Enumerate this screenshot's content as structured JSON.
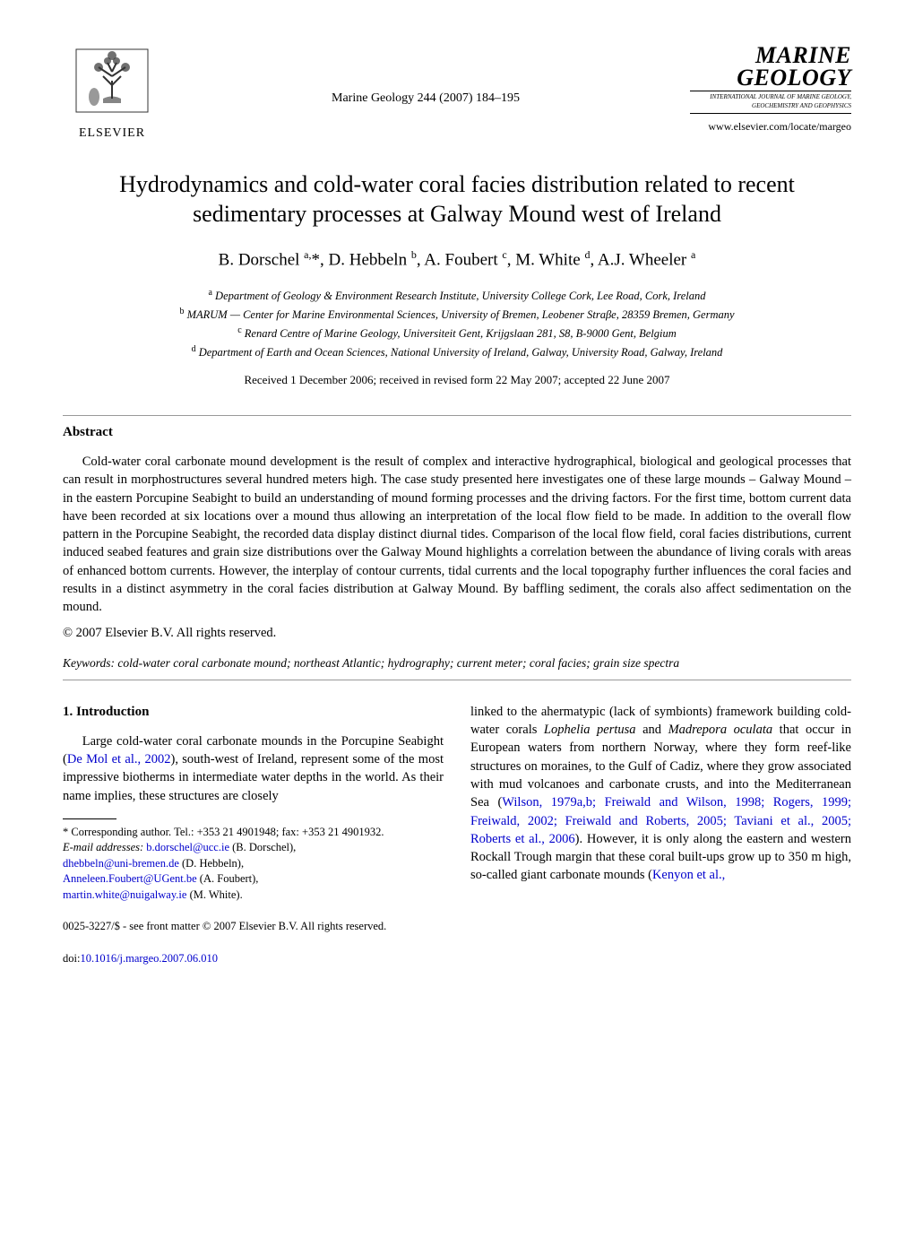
{
  "header": {
    "elsevier_label": "ELSEVIER",
    "citation": "Marine Geology 244 (2007) 184–195",
    "journal_name_line1": "MARINE",
    "journal_name_line2": "GEOLOGY",
    "journal_subtitle": "INTERNATIONAL JOURNAL OF MARINE GEOLOGY, GEOCHEMISTRY AND GEOPHYSICS",
    "journal_url": "www.elsevier.com/locate/margeo"
  },
  "article": {
    "title": "Hydrodynamics and cold-water coral facies distribution related to recent sedimentary processes at Galway Mound west of Ireland",
    "authors_html": "B. Dorschel <sup>a,</sup>*, D. Hebbeln <sup>b</sup>, A. Foubert <sup>c</sup>, M. White <sup>d</sup>, A.J. Wheeler <sup>a</sup>",
    "affiliations": [
      {
        "sup": "a",
        "text": "Department of Geology & Environment Research Institute, University College Cork, Lee Road, Cork, Ireland"
      },
      {
        "sup": "b",
        "text": "MARUM — Center for Marine Environmental Sciences, University of Bremen, Leobener Straβe, 28359 Bremen, Germany"
      },
      {
        "sup": "c",
        "text": "Renard Centre of Marine Geology, Universiteit Gent, Krijgslaan 281, S8, B-9000 Gent, Belgium"
      },
      {
        "sup": "d",
        "text": "Department of Earth and Ocean Sciences, National University of Ireland, Galway, University Road, Galway, Ireland"
      }
    ],
    "received": "Received 1 December 2006; received in revised form 22 May 2007; accepted 22 June 2007"
  },
  "abstract": {
    "heading": "Abstract",
    "text": "Cold-water coral carbonate mound development is the result of complex and interactive hydrographical, biological and geological processes that can result in morphostructures several hundred meters high. The case study presented here investigates one of these large mounds – Galway Mound – in the eastern Porcupine Seabight to build an understanding of mound forming processes and the driving factors. For the first time, bottom current data have been recorded at six locations over a mound thus allowing an interpretation of the local flow field to be made. In addition to the overall flow pattern in the Porcupine Seabight, the recorded data display distinct diurnal tides. Comparison of the local flow field, coral facies distributions, current induced seabed features and grain size distributions over the Galway Mound highlights a correlation between the abundance of living corals with areas of enhanced bottom currents. However, the interplay of contour currents, tidal currents and the local topography further influences the coral facies and results in a distinct asymmetry in the coral facies distribution at Galway Mound. By baffling sediment, the corals also affect sedimentation on the mound.",
    "copyright": "© 2007 Elsevier B.V. All rights reserved."
  },
  "keywords": {
    "label": "Keywords:",
    "text": "cold-water coral carbonate mound; northeast Atlantic; hydrography; current meter; coral facies; grain size spectra"
  },
  "introduction": {
    "heading": "1. Introduction",
    "col1_text_pre": "Large cold-water coral carbonate mounds in the Porcupine Seabight (",
    "col1_ref": "De Mol et al., 2002",
    "col1_text_post": "), south-west of Ireland, represent some of the most impressive biotherms in intermediate water depths in the world. As their name implies, these structures are closely",
    "col2_text_pre": "linked to the ahermatypic (lack of symbionts) framework building cold-water corals ",
    "col2_italic1": "Lophelia pertusa",
    "col2_mid1": " and ",
    "col2_italic2": "Madrepora oculata",
    "col2_mid2": " that occur in European waters from northern Norway, where they form reef-like structures on moraines, to the Gulf of Cadiz, where they grow associated with mud volcanoes and carbonate crusts, and into the Mediterranean Sea (",
    "col2_ref1": "Wilson, 1979a,b; Freiwald and Wilson, 1998; Rogers, 1999; Freiwald, 2002; Freiwald and Roberts, 2005; Taviani et al., 2005; Roberts et al., 2006",
    "col2_mid3": "). However, it is only along the eastern and western Rockall Trough margin that these coral built-ups grow up to 350 m high, so-called giant carbonate mounds (",
    "col2_ref2": "Kenyon et al.,"
  },
  "footnote": {
    "corresponding": "* Corresponding author. Tel.: +353 21 4901948; fax: +353 21 4901932.",
    "email_label": "E-mail addresses:",
    "emails": [
      {
        "addr": "b.dorschel@ucc.ie",
        "name": "(B. Dorschel),"
      },
      {
        "addr": "dhebbeln@uni-bremen.de",
        "name": "(D. Hebbeln),"
      },
      {
        "addr": "Anneleen.Foubert@UGent.be",
        "name": "(A. Foubert),"
      },
      {
        "addr": "martin.white@nuigalway.ie",
        "name": "(M. White)."
      }
    ]
  },
  "bottom": {
    "line1": "0025-3227/$ - see front matter © 2007 Elsevier B.V. All rights reserved.",
    "doi_label": "doi:",
    "doi": "10.1016/j.margeo.2007.06.010"
  }
}
